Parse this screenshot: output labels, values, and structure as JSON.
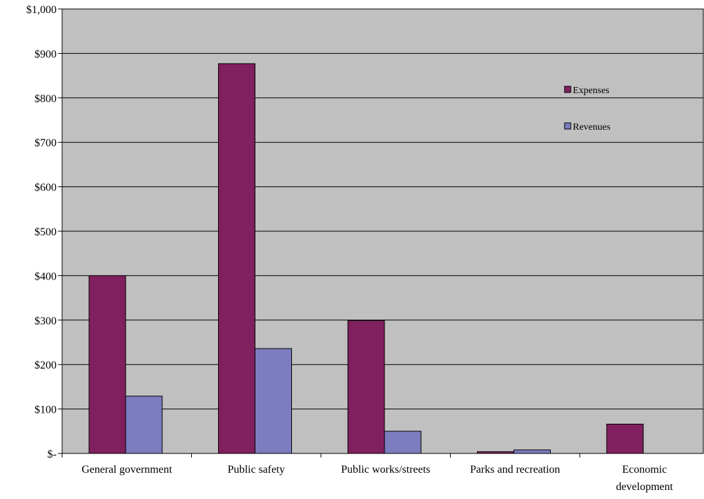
{
  "chart_data": {
    "type": "bar",
    "title": "",
    "xlabel": "",
    "ylabel": "",
    "categories": [
      [
        "General government"
      ],
      [
        "Public safety"
      ],
      [
        "Public works/streets"
      ],
      [
        "Parks and recreation"
      ],
      [
        "Economic",
        "development"
      ]
    ],
    "series": [
      {
        "name": "Expenses",
        "color": "#80205e",
        "values": [
          400,
          877,
          299,
          4,
          66
        ]
      },
      {
        "name": "Revenues",
        "color": "#7b7dbe",
        "values": [
          129,
          236,
          50,
          8,
          0
        ]
      }
    ],
    "ylim": [
      0,
      1000
    ],
    "yticks": [
      0,
      100,
      200,
      300,
      400,
      500,
      600,
      700,
      800,
      900,
      1000
    ],
    "ytick_labels": [
      "$-",
      "$100",
      "$200",
      "$300",
      "$400",
      "$500",
      "$600",
      "$700",
      "$800",
      "$900",
      "$1,000"
    ],
    "grid": true,
    "plot_background": "#c0c0c0",
    "legend_position": "top-right"
  }
}
